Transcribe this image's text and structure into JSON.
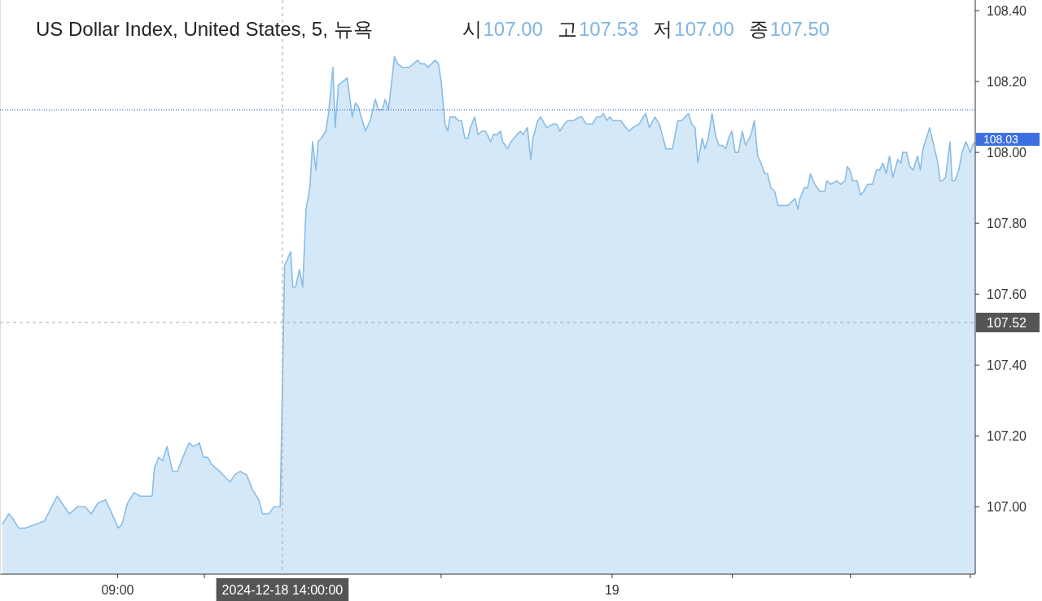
{
  "chart_data": {
    "type": "area",
    "title": "US Dollar Index, United States, 5, 뉴욕",
    "annotations": [
      "시",
      "107.00",
      "고",
      "107.53",
      "저",
      "107.00",
      "종",
      "107.50",
      {
        "text": "108.03",
        "x": "2024-12-19T11:01",
        "y": 108.03
      }
    ],
    "xlim": [
      "2024-12-18T05:26",
      "2024-12-19T11:01"
    ],
    "xticks": [
      {
        "value": "2024-12-18T09:00",
        "label": "09:00"
      },
      {
        "value": "2024-12-18T11:38",
        "label": null
      },
      {
        "value": "2024-12-18T18:49",
        "label": null
      },
      {
        "value": "2024-12-19T00:00",
        "label": "19"
      },
      {
        "value": "2024-12-19T03:39",
        "label": null
      },
      {
        "value": "2024-12-19T07:14",
        "label": null
      },
      {
        "value": "2024-12-19T10:52",
        "label": null
      }
    ],
    "ylim": [
      106.81,
      108.43
    ],
    "yticks": [
      {
        "value": 107,
        "label": "107.00"
      },
      {
        "value": 107.2,
        "label": "107.20"
      },
      {
        "value": 107.4,
        "label": "107.40"
      },
      {
        "value": 107.6,
        "label": "107.60"
      },
      {
        "value": 107.8,
        "label": "107.80"
      },
      {
        "value": 108,
        "label": "108.00"
      },
      {
        "value": 108.2,
        "label": "108.20"
      },
      {
        "value": 108.4,
        "label": "108.40"
      }
    ],
    "ref_lines": [
      {
        "axis": "y",
        "value": 108.12,
        "label": null,
        "color": "#3355dd",
        "line_style": "dotted"
      },
      {
        "axis": "y",
        "value": 107.52,
        "label": "107.52",
        "color": "#aaaaaa",
        "line_style": "dashed"
      },
      {
        "axis": "x",
        "value": "2024-12-18T14:00",
        "label": "2024-12-18 14:00:00",
        "color": "#aaaaaa",
        "line_style": "dashed"
      }
    ],
    "x": [
      "2024-12-18T05:30",
      "2024-12-18T05:42",
      "2024-12-18T05:48",
      "2024-12-18T06:00",
      "2024-12-18T06:12",
      "2024-12-18T06:47",
      "2024-12-18T07:10",
      "2024-12-18T07:32",
      "2024-12-18T07:47",
      "2024-12-18T08:01",
      "2024-12-18T08:12",
      "2024-12-18T08:24",
      "2024-12-18T08:38",
      "2024-12-18T08:50",
      "2024-12-18T09:01",
      "2024-12-18T09:08",
      "2024-12-18T09:18",
      "2024-12-18T09:30",
      "2024-12-18T09:41",
      "2024-12-18T09:53",
      "2024-12-18T10:03",
      "2024-12-18T10:07",
      "2024-12-18T10:15",
      "2024-12-18T10:22",
      "2024-12-18T10:30",
      "2024-12-18T10:40",
      "2024-12-18T10:49",
      "2024-12-18T10:59",
      "2024-12-18T11:10",
      "2024-12-18T11:18",
      "2024-12-18T11:29",
      "2024-12-18T11:36",
      "2024-12-18T11:44",
      "2024-12-18T11:51",
      "2024-12-18T12:06",
      "2024-12-18T12:18",
      "2024-12-18T12:25",
      "2024-12-18T12:33",
      "2024-12-18T12:43",
      "2024-12-18T12:55",
      "2024-12-18T13:05",
      "2024-12-18T13:17",
      "2024-12-18T13:24",
      "2024-12-18T13:35",
      "2024-12-18T13:45",
      "2024-12-18T13:56",
      "2024-12-18T14:04",
      "2024-12-18T14:15",
      "2024-12-18T14:19",
      "2024-12-18T14:24",
      "2024-12-18T14:31",
      "2024-12-18T14:37",
      "2024-12-18T14:43",
      "2024-12-18T14:50",
      "2024-12-18T14:55",
      "2024-12-18T15:01",
      "2024-12-18T15:05",
      "2024-12-18T15:11",
      "2024-12-18T15:19",
      "2024-12-18T15:24",
      "2024-12-18T15:32",
      "2024-12-18T15:36",
      "2024-12-18T15:42",
      "2024-12-18T15:50",
      "2024-12-18T15:58",
      "2024-12-18T16:07",
      "2024-12-18T16:13",
      "2024-12-18T16:18",
      "2024-12-18T16:31",
      "2024-12-18T16:40",
      "2024-12-18T16:49",
      "2024-12-18T16:55",
      "2024-12-18T17:02",
      "2024-12-18T17:07",
      "2024-12-18T17:13",
      "2024-12-18T17:24",
      "2024-12-18T17:30",
      "2024-12-18T17:38",
      "2024-12-18T17:51",
      "2024-12-18T18:06",
      "2024-12-18T18:12",
      "2024-12-18T18:19",
      "2024-12-18T18:25",
      "2024-12-18T18:38",
      "2024-12-18T18:44",
      "2024-12-18T18:49",
      "2024-12-18T18:56",
      "2024-12-18T19:01",
      "2024-12-18T19:05",
      "2024-12-18T19:14",
      "2024-12-18T19:20",
      "2024-12-18T19:26",
      "2024-12-18T19:32",
      "2024-12-18T19:38",
      "2024-12-18T19:42",
      "2024-12-18T19:50",
      "2024-12-18T19:56",
      "2024-12-18T20:03",
      "2024-12-18T20:09",
      "2024-12-18T20:13",
      "2024-12-18T20:19",
      "2024-12-18T20:24",
      "2024-12-18T20:31",
      "2024-12-18T20:37",
      "2024-12-18T20:41",
      "2024-12-18T20:50",
      "2024-12-18T20:56",
      "2024-12-18T21:07",
      "2024-12-18T21:13",
      "2024-12-18T21:18",
      "2024-12-18T21:26",
      "2024-12-18T21:32",
      "2024-12-18T21:36",
      "2024-12-18T21:45",
      "2024-12-18T21:50",
      "2024-12-18T22:01",
      "2024-12-18T22:13",
      "2024-12-18T22:19",
      "2024-12-18T22:25",
      "2024-12-18T22:33",
      "2024-12-18T22:40",
      "2024-12-18T22:50",
      "2024-12-18T23:01",
      "2024-12-18T23:05",
      "2024-12-18T23:13",
      "2024-12-18T23:20",
      "2024-12-18T23:24",
      "2024-12-18T23:32",
      "2024-12-18T23:39",
      "2024-12-18T23:44",
      "2024-12-18T23:50",
      "2024-12-18T23:56",
      "2024-12-19T00:01",
      "2024-12-19T00:16",
      "2024-12-19T00:25",
      "2024-12-19T00:31",
      "2024-12-19T00:38",
      "2024-12-19T00:49",
      "2024-12-19T01:01",
      "2024-12-19T01:08",
      "2024-12-19T01:18",
      "2024-12-19T01:26",
      "2024-12-19T01:33",
      "2024-12-19T01:38",
      "2024-12-19T01:50",
      "2024-12-19T01:56",
      "2024-12-19T02:00",
      "2024-12-19T02:07",
      "2024-12-19T02:13",
      "2024-12-19T02:19",
      "2024-12-19T02:25",
      "2024-12-19T02:31",
      "2024-12-19T02:36",
      "2024-12-19T02:44",
      "2024-12-19T02:49",
      "2024-12-19T02:55",
      "2024-12-19T03:02",
      "2024-12-19T03:08",
      "2024-12-19T03:14",
      "2024-12-19T03:20",
      "2024-12-19T03:27",
      "2024-12-19T03:32",
      "2024-12-19T03:38",
      "2024-12-19T03:44",
      "2024-12-19T03:50",
      "2024-12-19T03:57",
      "2024-12-19T04:03",
      "2024-12-19T04:13",
      "2024-12-19T04:19",
      "2024-12-19T04:25",
      "2024-12-19T04:31",
      "2024-12-19T04:38",
      "2024-12-19T04:43",
      "2024-12-19T04:49",
      "2024-12-19T04:56",
      "2024-12-19T05:02",
      "2024-12-19T05:07",
      "2024-12-19T05:13",
      "2024-12-19T05:20",
      "2024-12-19T05:33",
      "2024-12-19T05:38",
      "2024-12-19T05:42",
      "2024-12-19T05:50",
      "2024-12-19T05:56",
      "2024-12-19T06:01",
      "2024-12-19T06:09",
      "2024-12-19T06:18",
      "2024-12-19T06:27",
      "2024-12-19T06:31",
      "2024-12-19T06:38",
      "2024-12-19T06:49",
      "2024-12-19T06:56",
      "2024-12-19T07:04",
      "2024-12-19T07:08",
      "2024-12-19T07:13",
      "2024-12-19T07:18",
      "2024-12-19T07:26",
      "2024-12-19T07:32",
      "2024-12-19T07:38",
      "2024-12-19T07:45",
      "2024-12-19T07:54",
      "2024-12-19T08:01",
      "2024-12-19T08:07",
      "2024-12-19T08:13",
      "2024-12-19T08:19",
      "2024-12-19T08:25",
      "2024-12-19T08:31",
      "2024-12-19T08:40",
      "2024-12-19T08:46",
      "2024-12-19T08:49",
      "2024-12-19T08:56",
      "2024-12-19T09:02",
      "2024-12-19T09:08",
      "2024-12-19T09:16",
      "2024-12-19T09:21",
      "2024-12-19T09:26",
      "2024-12-19T09:38",
      "2024-12-19T09:53",
      "2024-12-19T09:57",
      "2024-12-19T10:01",
      "2024-12-19T10:07",
      "2024-12-19T10:15",
      "2024-12-19T10:19",
      "2024-12-19T10:24",
      "2024-12-19T10:31",
      "2024-12-19T10:37",
      "2024-12-19T10:44",
      "2024-12-19T10:52",
      "2024-12-19T10:56",
      "2024-12-19T11:01"
    ],
    "series": [
      {
        "color": "#88bde8",
        "values": [
          106.95,
          106.98,
          106.97,
          106.94,
          106.94,
          106.96,
          107.03,
          106.98,
          107.0,
          107.0,
          106.98,
          107.01,
          107.02,
          106.98,
          106.94,
          106.95,
          107.01,
          107.04,
          107.03,
          107.03,
          107.03,
          107.11,
          107.14,
          107.13,
          107.17,
          107.1,
          107.1,
          107.14,
          107.18,
          107.17,
          107.18,
          107.14,
          107.14,
          107.12,
          107.1,
          107.08,
          107.07,
          107.09,
          107.1,
          107.09,
          107.05,
          107.02,
          106.98,
          106.98,
          107.0,
          107.0,
          107.68,
          107.72,
          107.62,
          107.62,
          107.67,
          107.62,
          107.84,
          107.9,
          108.03,
          107.95,
          108.03,
          108.04,
          108.06,
          108.11,
          108.24,
          108.07,
          108.19,
          108.2,
          108.21,
          108.1,
          108.14,
          108.13,
          108.06,
          108.09,
          108.15,
          108.12,
          108.12,
          108.15,
          108.12,
          108.27,
          108.25,
          108.24,
          108.24,
          108.26,
          108.25,
          108.25,
          108.24,
          108.26,
          108.25,
          108.2,
          108.08,
          108.06,
          108.1,
          108.1,
          108.09,
          108.09,
          108.04,
          108.04,
          108.07,
          108.1,
          108.05,
          108.06,
          108.06,
          108.05,
          108.03,
          108.05,
          108.05,
          108.06,
          108.03,
          108.01,
          108.03,
          108.05,
          108.06,
          108.05,
          108.07,
          107.98,
          108.04,
          108.09,
          108.1,
          108.07,
          108.08,
          108.08,
          108.06,
          108.08,
          108.09,
          108.09,
          108.1,
          108.1,
          108.08,
          108.08,
          108.08,
          108.1,
          108.1,
          108.11,
          108.09,
          108.1,
          108.09,
          108.09,
          108.07,
          108.06,
          108.07,
          108.08,
          108.11,
          108.07,
          108.1,
          108.08,
          108.04,
          108.01,
          108.01,
          108.06,
          108.09,
          108.09,
          108.1,
          108.11,
          108.08,
          108.07,
          107.97,
          108.04,
          108.01,
          108.04,
          108.11,
          108.05,
          108.02,
          108.02,
          108.01,
          108.04,
          108.06,
          108.0,
          108.0,
          108.06,
          108.02,
          108.05,
          108.09,
          107.99,
          107.97,
          107.94,
          107.94,
          107.9,
          107.89,
          107.85,
          107.85,
          107.85,
          107.85,
          107.87,
          107.84,
          107.87,
          107.9,
          107.9,
          107.94,
          107.91,
          107.89,
          107.89,
          107.92,
          107.91,
          107.92,
          107.91,
          107.92,
          107.96,
          107.95,
          107.92,
          107.92,
          107.88,
          107.89,
          107.91,
          107.91,
          107.95,
          107.95,
          107.97,
          107.94,
          107.99,
          107.93,
          107.98,
          107.97,
          108.0,
          108.0,
          107.96,
          107.95,
          107.99,
          107.95,
          108.01,
          108.07,
          107.97,
          107.92,
          107.92,
          107.93,
          108.03,
          107.92,
          107.92,
          107.95,
          108.0,
          108.03,
          108.0,
          108.02,
          108.03
        ]
      }
    ]
  }
}
